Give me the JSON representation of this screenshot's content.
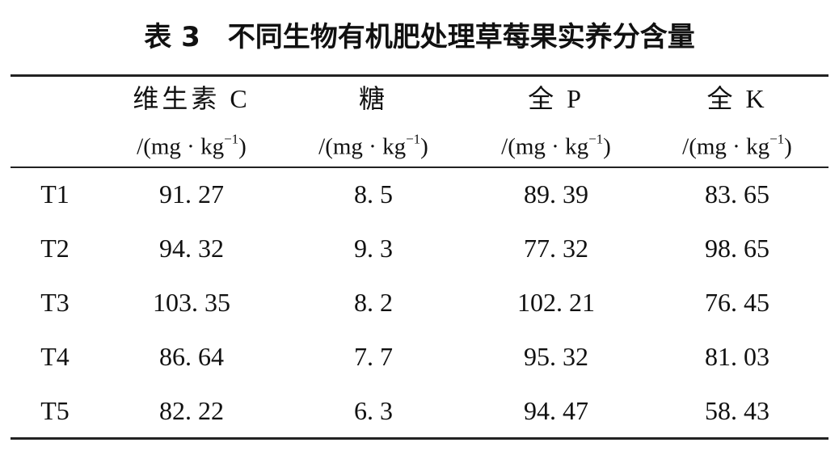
{
  "title": "表 3　不同生物有机肥处理草莓果实养分含量",
  "table": {
    "columns": [
      {
        "name": "维生素 C",
        "unit": [
          "/(mg · kg",
          "−1",
          ")"
        ]
      },
      {
        "name": "糖",
        "unit": [
          "/(mg · kg",
          "−1",
          ")"
        ]
      },
      {
        "name": "全 P",
        "unit": [
          "/(mg · kg",
          "−1",
          ")"
        ]
      },
      {
        "name": "全 K",
        "unit": [
          "/(mg · kg",
          "−1",
          ")"
        ]
      }
    ],
    "rows": [
      [
        "T1",
        "91. 27",
        "8. 5",
        "89. 39",
        "83. 65"
      ],
      [
        "T2",
        "94. 32",
        "9. 3",
        "77. 32",
        "98. 65"
      ],
      [
        "T3",
        "103. 35",
        "8. 2",
        "102. 21",
        "76. 45"
      ],
      [
        "T4",
        "86. 64",
        "7. 7",
        "95. 32",
        "81. 03"
      ],
      [
        "T5",
        "82. 22",
        "6. 3",
        "94. 47",
        "58. 43"
      ]
    ]
  }
}
